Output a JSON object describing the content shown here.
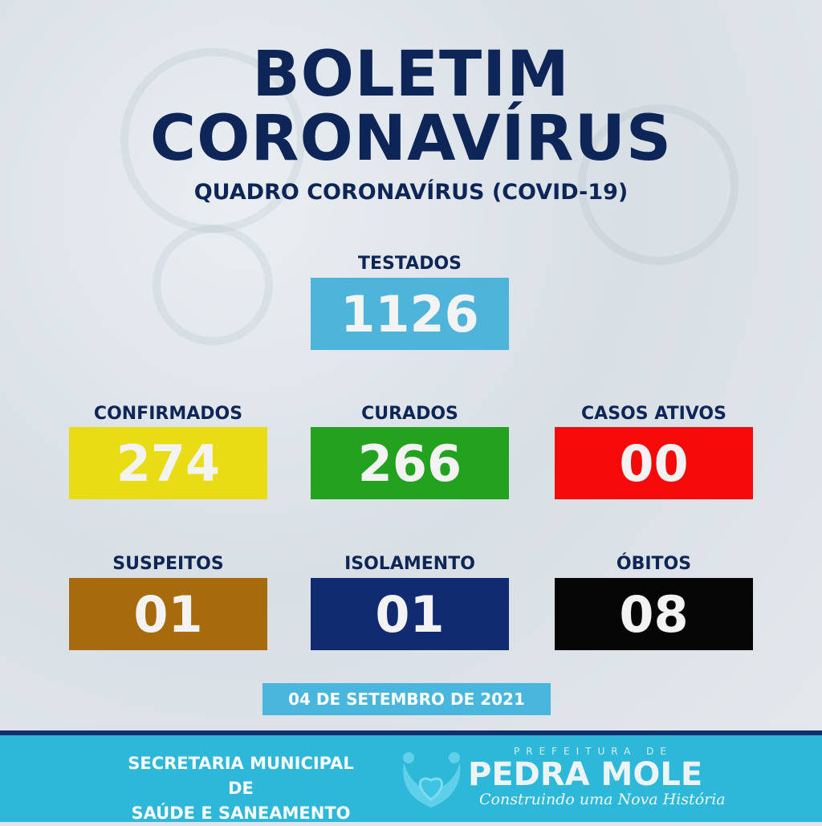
{
  "title_line1": "BOLETIM",
  "title_line2": "CORONAVÍRUS",
  "subtitle": "QUADRO CORONAVÍRUS (COVID-19)",
  "stats": {
    "testados": {
      "label": "TESTADOS",
      "value": "1126",
      "color": "#4fb4d9"
    },
    "confirmados": {
      "label": "CONFIRMADOS",
      "value": "274",
      "color": "#e8dc14"
    },
    "curados": {
      "label": "CURADOS",
      "value": "266",
      "color": "#22a21e"
    },
    "ativos": {
      "label": "CASOS ATIVOS",
      "value": "00",
      "color": "#f50a0a"
    },
    "suspeitos": {
      "label": "SUSPEITOS",
      "value": "01",
      "color": "#a66c0c"
    },
    "isolamento": {
      "label": "ISOLAMENTO",
      "value": "01",
      "color": "#102b70"
    },
    "obitos": {
      "label": "ÓBITOS",
      "value": "08",
      "color": "#050505"
    }
  },
  "date": "04 DE SETEMBRO DE 2021",
  "footer": {
    "secretaria_line1": "SECRETARIA MUNICIPAL DE",
    "secretaria_line2": "SAÚDE E SANEAMENTO",
    "logo_prefix": "PREFEITURA DE",
    "logo_name": "PEDRA MOLE",
    "logo_slogan": "Construindo uma Nova História"
  }
}
